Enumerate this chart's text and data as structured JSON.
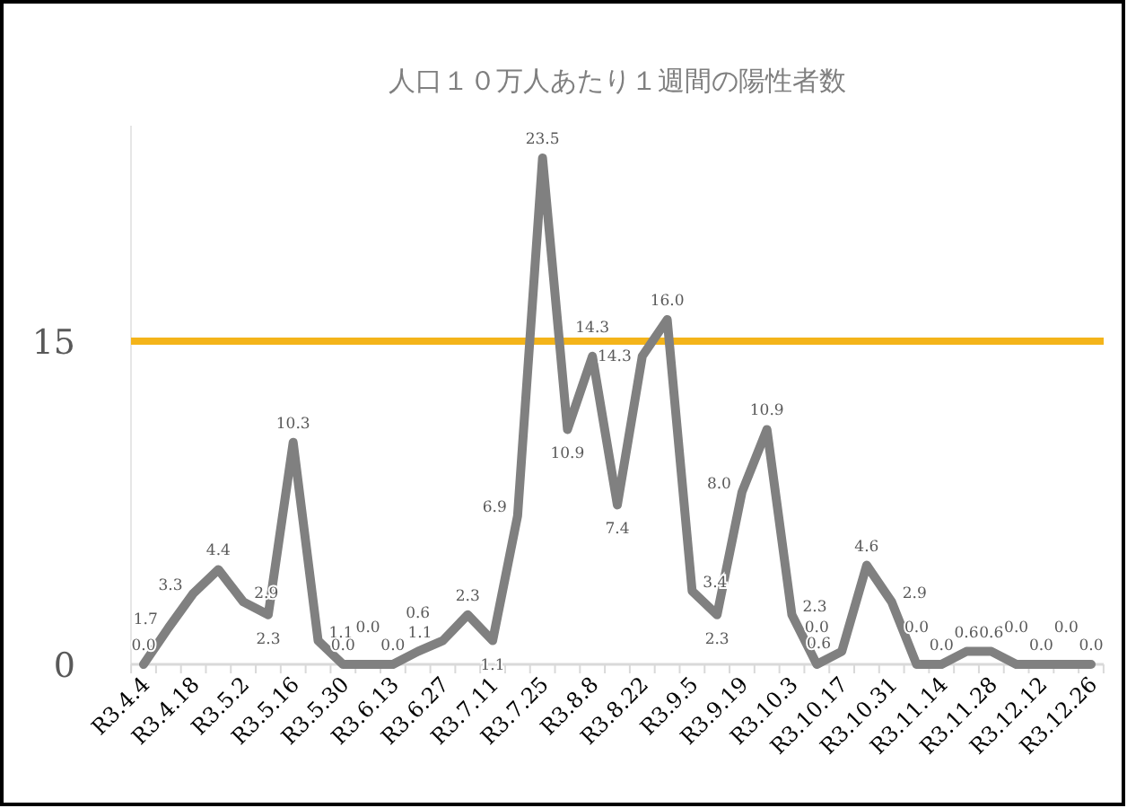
{
  "chart_data": {
    "type": "line",
    "title": "人口１０万人あたり１週間の陽性者数",
    "categories": [
      "R3.4.4",
      null,
      "R3.4.18",
      null,
      "R3.5.2",
      null,
      "R3.5.16",
      null,
      "R3.5.30",
      null,
      "R3.6.13",
      null,
      "R3.6.27",
      null,
      "R3.7.11",
      null,
      "R3.7.25",
      null,
      "R3.8.8",
      null,
      "R3.8.22",
      null,
      "R3.9.5",
      null,
      "R3.9.19",
      null,
      "R3.10.3",
      null,
      "R3.10.17",
      null,
      "R3.10.31",
      null,
      "R3.11.14",
      null,
      "R3.11.28",
      null,
      "R3.12.12",
      null,
      "R3.12.26"
    ],
    "series": [
      {
        "color": "#808080",
        "values": [
          0.0,
          1.7,
          3.3,
          4.4,
          2.9,
          2.3,
          10.3,
          1.1,
          0.0,
          0.0,
          0.0,
          0.6,
          1.1,
          2.3,
          1.1,
          6.9,
          23.5,
          10.9,
          14.3,
          7.4,
          14.3,
          16.0,
          3.4,
          2.3,
          8.0,
          10.9,
          2.3,
          0.0,
          0.6,
          4.6,
          2.9,
          0.0,
          0.0,
          0.6,
          0.6,
          0.0,
          0.0,
          0.0,
          0.0
        ],
        "value_labels": [
          "0.0",
          "1.7",
          "3.3",
          "4.4",
          "2.9",
          "2.3",
          "10.3",
          "1.1",
          "0.0",
          "0.0",
          "0.0",
          "0.6",
          "1.1",
          "2.3",
          "1.1",
          "6.9",
          "23.5",
          "10.9",
          "14.3",
          "7.4",
          "14.3",
          "16.0",
          "3.4",
          "2.3",
          "8.0",
          "10.9",
          "2.3",
          "0.0",
          "0.6",
          "4.6",
          "2.9",
          "0.0",
          "0.0",
          "0.6",
          "0.6",
          "0.0",
          "0.0",
          "0.0",
          "0.0"
        ]
      }
    ],
    "ylim": [
      0,
      25
    ],
    "yticks": [
      0,
      15
    ],
    "ref_lines": [
      {
        "axis": "y",
        "value": 15,
        "color": "#f4b41a"
      }
    ],
    "marker": "none",
    "line_style": "solid"
  }
}
